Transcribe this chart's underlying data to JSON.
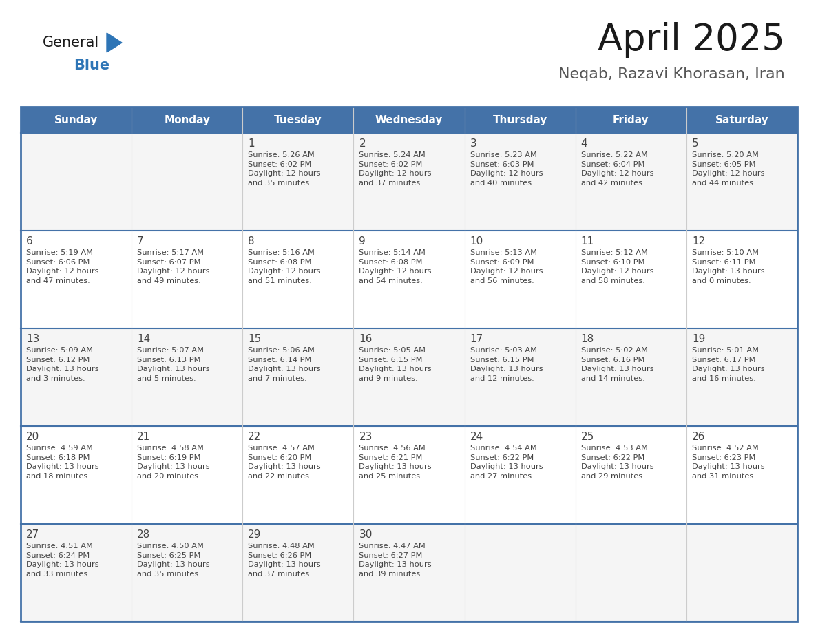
{
  "title": "April 2025",
  "subtitle": "Neqab, Razavi Khorasan, Iran",
  "days_of_week": [
    "Sunday",
    "Monday",
    "Tuesday",
    "Wednesday",
    "Thursday",
    "Friday",
    "Saturday"
  ],
  "header_bg": "#4472A8",
  "header_fg": "#FFFFFF",
  "cell_bg": "#FFFFFF",
  "row_separator_color": "#4472A8",
  "col_separator_color": "#CCCCCC",
  "text_color": "#444444",
  "title_color": "#1a1a1a",
  "subtitle_color": "#555555",
  "calendar": [
    [
      {
        "day": null,
        "info": null
      },
      {
        "day": null,
        "info": null
      },
      {
        "day": 1,
        "info": "Sunrise: 5:26 AM\nSunset: 6:02 PM\nDaylight: 12 hours\nand 35 minutes."
      },
      {
        "day": 2,
        "info": "Sunrise: 5:24 AM\nSunset: 6:02 PM\nDaylight: 12 hours\nand 37 minutes."
      },
      {
        "day": 3,
        "info": "Sunrise: 5:23 AM\nSunset: 6:03 PM\nDaylight: 12 hours\nand 40 minutes."
      },
      {
        "day": 4,
        "info": "Sunrise: 5:22 AM\nSunset: 6:04 PM\nDaylight: 12 hours\nand 42 minutes."
      },
      {
        "day": 5,
        "info": "Sunrise: 5:20 AM\nSunset: 6:05 PM\nDaylight: 12 hours\nand 44 minutes."
      }
    ],
    [
      {
        "day": 6,
        "info": "Sunrise: 5:19 AM\nSunset: 6:06 PM\nDaylight: 12 hours\nand 47 minutes."
      },
      {
        "day": 7,
        "info": "Sunrise: 5:17 AM\nSunset: 6:07 PM\nDaylight: 12 hours\nand 49 minutes."
      },
      {
        "day": 8,
        "info": "Sunrise: 5:16 AM\nSunset: 6:08 PM\nDaylight: 12 hours\nand 51 minutes."
      },
      {
        "day": 9,
        "info": "Sunrise: 5:14 AM\nSunset: 6:08 PM\nDaylight: 12 hours\nand 54 minutes."
      },
      {
        "day": 10,
        "info": "Sunrise: 5:13 AM\nSunset: 6:09 PM\nDaylight: 12 hours\nand 56 minutes."
      },
      {
        "day": 11,
        "info": "Sunrise: 5:12 AM\nSunset: 6:10 PM\nDaylight: 12 hours\nand 58 minutes."
      },
      {
        "day": 12,
        "info": "Sunrise: 5:10 AM\nSunset: 6:11 PM\nDaylight: 13 hours\nand 0 minutes."
      }
    ],
    [
      {
        "day": 13,
        "info": "Sunrise: 5:09 AM\nSunset: 6:12 PM\nDaylight: 13 hours\nand 3 minutes."
      },
      {
        "day": 14,
        "info": "Sunrise: 5:07 AM\nSunset: 6:13 PM\nDaylight: 13 hours\nand 5 minutes."
      },
      {
        "day": 15,
        "info": "Sunrise: 5:06 AM\nSunset: 6:14 PM\nDaylight: 13 hours\nand 7 minutes."
      },
      {
        "day": 16,
        "info": "Sunrise: 5:05 AM\nSunset: 6:15 PM\nDaylight: 13 hours\nand 9 minutes."
      },
      {
        "day": 17,
        "info": "Sunrise: 5:03 AM\nSunset: 6:15 PM\nDaylight: 13 hours\nand 12 minutes."
      },
      {
        "day": 18,
        "info": "Sunrise: 5:02 AM\nSunset: 6:16 PM\nDaylight: 13 hours\nand 14 minutes."
      },
      {
        "day": 19,
        "info": "Sunrise: 5:01 AM\nSunset: 6:17 PM\nDaylight: 13 hours\nand 16 minutes."
      }
    ],
    [
      {
        "day": 20,
        "info": "Sunrise: 4:59 AM\nSunset: 6:18 PM\nDaylight: 13 hours\nand 18 minutes."
      },
      {
        "day": 21,
        "info": "Sunrise: 4:58 AM\nSunset: 6:19 PM\nDaylight: 13 hours\nand 20 minutes."
      },
      {
        "day": 22,
        "info": "Sunrise: 4:57 AM\nSunset: 6:20 PM\nDaylight: 13 hours\nand 22 minutes."
      },
      {
        "day": 23,
        "info": "Sunrise: 4:56 AM\nSunset: 6:21 PM\nDaylight: 13 hours\nand 25 minutes."
      },
      {
        "day": 24,
        "info": "Sunrise: 4:54 AM\nSunset: 6:22 PM\nDaylight: 13 hours\nand 27 minutes."
      },
      {
        "day": 25,
        "info": "Sunrise: 4:53 AM\nSunset: 6:22 PM\nDaylight: 13 hours\nand 29 minutes."
      },
      {
        "day": 26,
        "info": "Sunrise: 4:52 AM\nSunset: 6:23 PM\nDaylight: 13 hours\nand 31 minutes."
      }
    ],
    [
      {
        "day": 27,
        "info": "Sunrise: 4:51 AM\nSunset: 6:24 PM\nDaylight: 13 hours\nand 33 minutes."
      },
      {
        "day": 28,
        "info": "Sunrise: 4:50 AM\nSunset: 6:25 PM\nDaylight: 13 hours\nand 35 minutes."
      },
      {
        "day": 29,
        "info": "Sunrise: 4:48 AM\nSunset: 6:26 PM\nDaylight: 13 hours\nand 37 minutes."
      },
      {
        "day": 30,
        "info": "Sunrise: 4:47 AM\nSunset: 6:27 PM\nDaylight: 13 hours\nand 39 minutes."
      },
      {
        "day": null,
        "info": null
      },
      {
        "day": null,
        "info": null
      },
      {
        "day": null,
        "info": null
      }
    ]
  ],
  "logo_text1": "General",
  "logo_text2": "Blue",
  "logo_triangle_color": "#2E75B6",
  "logo_text1_color": "#1a1a1a",
  "logo_text2_color": "#2E75B6",
  "figsize": [
    11.88,
    9.18
  ],
  "dpi": 100
}
